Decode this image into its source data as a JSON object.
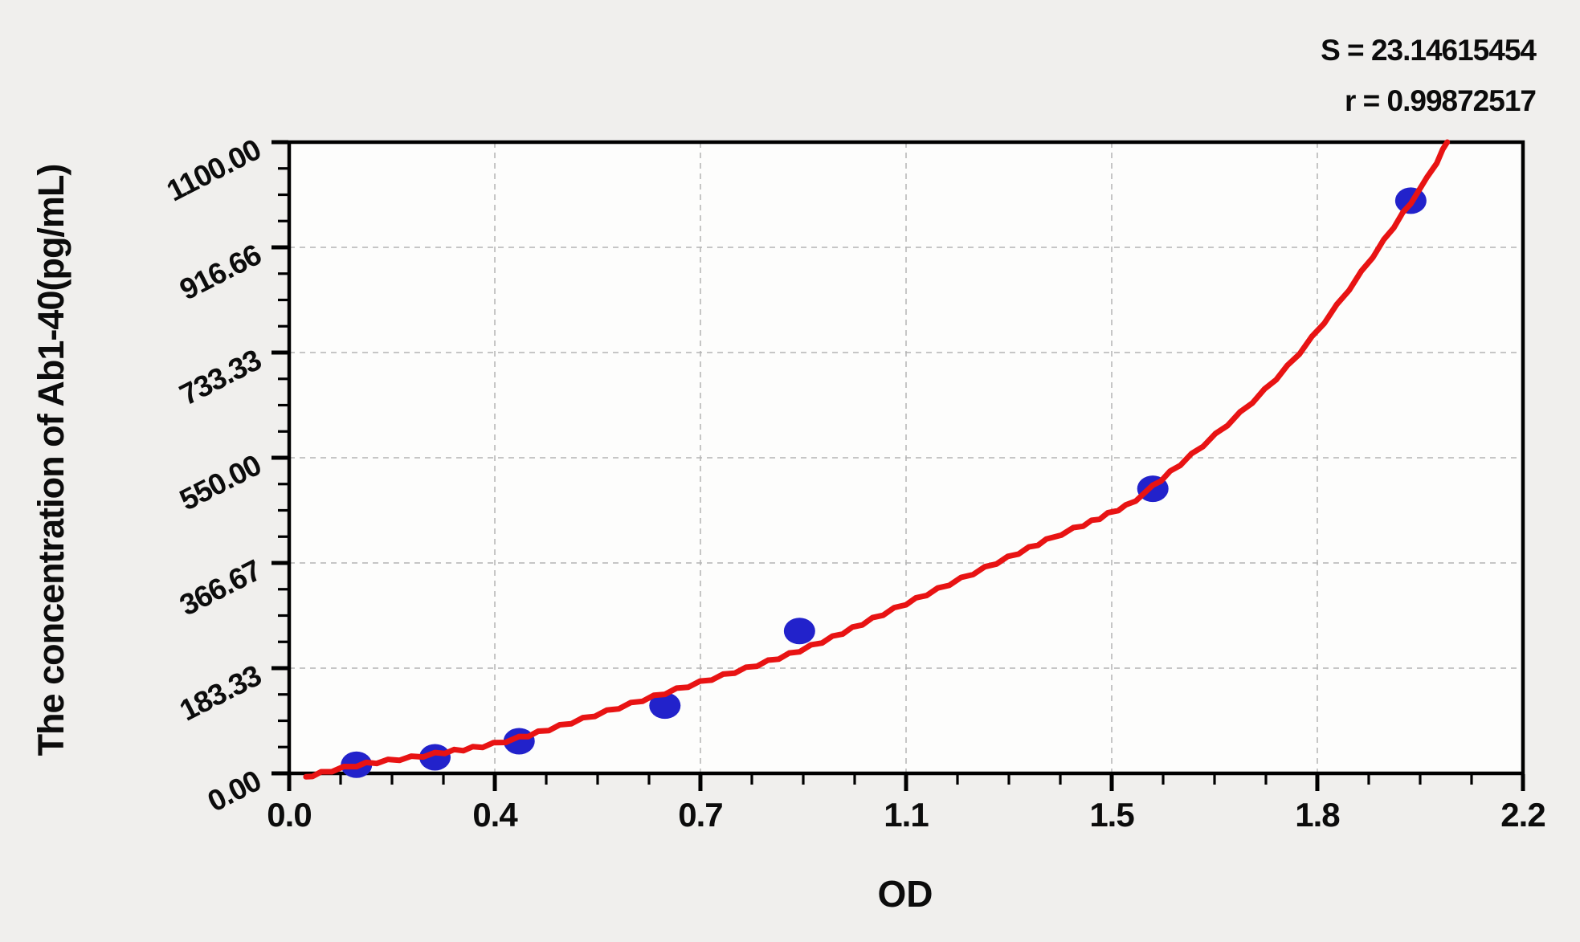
{
  "chart_data": {
    "type": "scatter",
    "title": "",
    "xlabel": "OD",
    "ylabel": "The concentration of Ab1-40(pg/mL)",
    "xlim": [
      0,
      2.2
    ],
    "ylim": [
      0,
      1100
    ],
    "grid": "dashed lines at interior major ticks, both axes",
    "legend_position": "none",
    "annotations": {
      "s": "S = 23.14615454",
      "r": "r = 0.99872517"
    },
    "x_ticks": {
      "values": [
        0,
        0.3667,
        0.7333,
        1.1,
        1.4667,
        1.8333,
        2.2
      ],
      "labels": [
        "0.0",
        "0.4",
        "0.7",
        "1.1",
        "1.5",
        "1.8",
        "2.2"
      ],
      "minor_per_interval": 3
    },
    "y_ticks": {
      "values": [
        0,
        183.33,
        366.67,
        550,
        733.33,
        916.66,
        1100
      ],
      "labels": [
        "0.00",
        "183.33",
        "366.67",
        "550.00",
        "733.33",
        "916.66",
        "1100.00"
      ],
      "minor_per_interval": 3
    },
    "series": [
      {
        "name": "standard-points",
        "type": "scatter",
        "color": "#2222cb",
        "points": [
          [
            0.12,
            15
          ],
          [
            0.26,
            28
          ],
          [
            0.41,
            56
          ],
          [
            0.67,
            118
          ],
          [
            0.91,
            248
          ],
          [
            1.54,
            496
          ],
          [
            2.0,
            998
          ]
        ]
      },
      {
        "name": "fitted-curve",
        "type": "line",
        "color": "#e81313",
        "points": [
          [
            0.03,
            -6
          ],
          [
            0.12,
            14
          ],
          [
            0.26,
            34
          ],
          [
            0.41,
            62
          ],
          [
            0.67,
            140
          ],
          [
            0.91,
            214
          ],
          [
            1.1,
            296
          ],
          [
            1.35,
            406
          ],
          [
            1.46,
            452
          ],
          [
            1.54,
            500
          ],
          [
            1.78,
            709
          ],
          [
            2.0,
            995
          ],
          [
            2.065,
            1100
          ]
        ]
      }
    ],
    "colors": {
      "plot_background": "#fdfdfc",
      "page_background": "#f0efed",
      "border": "#000000",
      "gridline": "#b3b3b3",
      "point": "#2222cb",
      "curve": "#e81313"
    }
  }
}
